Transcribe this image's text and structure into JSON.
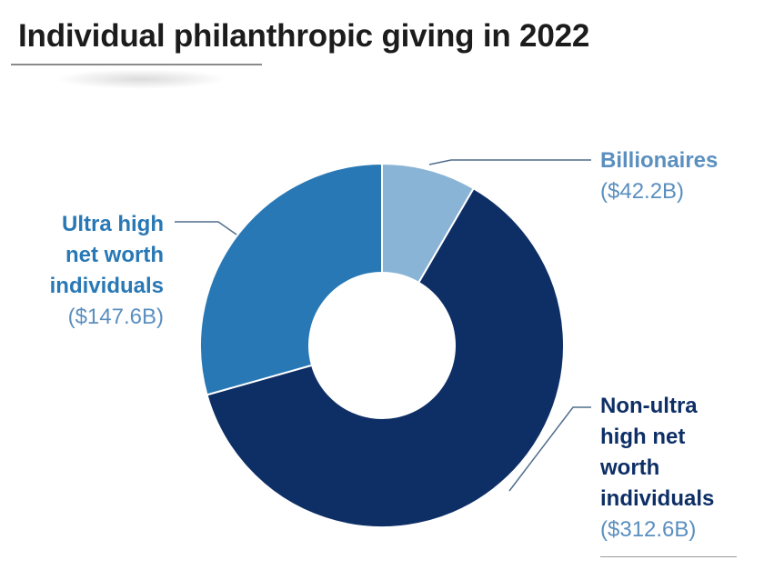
{
  "title": "Individual philanthropic giving in 2022",
  "chart_data": {
    "type": "pie",
    "donut": true,
    "title": "Individual philanthropic giving in 2022",
    "slices": [
      {
        "name": "Billionaires",
        "value": 42.2,
        "label": "($42.2B)",
        "color": "#8ab4d6"
      },
      {
        "name": "Non-ultra high net worth individuals",
        "value": 312.6,
        "label": "($312.6B)",
        "color": "#0e2f66"
      },
      {
        "name": "Ultra high net worth individuals",
        "value": 147.6,
        "label": "($147.6B)",
        "color": "#2878b5"
      }
    ]
  },
  "labels": {
    "billionaires": {
      "name": "Billionaires",
      "value": "($42.2B)"
    },
    "uhnw": {
      "name_lines": [
        "Ultra high",
        "net worth",
        "individuals"
      ],
      "value": "($147.6B)"
    },
    "nonuhnw": {
      "name_lines": [
        "Non-ultra",
        "high net",
        "worth",
        "individuals"
      ],
      "value": "($312.6B)"
    }
  },
  "colors": {
    "label_light": "#5b8fbf",
    "label_mid": "#2878b5",
    "label_dark": "#0e2f66",
    "value_text": "#5b8fbf"
  }
}
